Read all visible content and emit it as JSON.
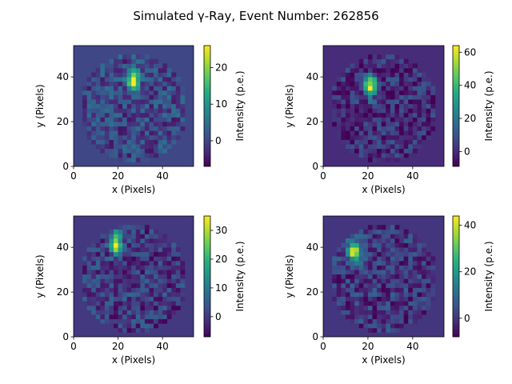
{
  "figure": {
    "suptitle": "Simulated γ-Ray, Event Number: 262856"
  },
  "chart_data": [
    {
      "type": "heatmap",
      "xlabel": "x (Pixels)",
      "ylabel": "y (Pixels)",
      "xlim": [
        0,
        54
      ],
      "ylim": [
        54,
        0
      ],
      "x_ticks": [
        0,
        20,
        40
      ],
      "y_ticks": [
        0,
        20,
        40
      ],
      "colorbar": {
        "label": "Intensity (p.e.)",
        "range": [
          -7,
          26
        ],
        "ticks": [
          0,
          10,
          20
        ],
        "colormap": "viridis"
      },
      "hotspot": {
        "x": 27,
        "y": 39,
        "peak": 26
      }
    },
    {
      "type": "heatmap",
      "xlabel": "x (Pixels)",
      "ylabel": "y (Pixels)",
      "xlim": [
        0,
        54
      ],
      "ylim": [
        54,
        0
      ],
      "x_ticks": [
        0,
        20,
        40
      ],
      "y_ticks": [
        0,
        20,
        40
      ],
      "colorbar": {
        "label": "Intensity (p.e.)",
        "range": [
          -9,
          64
        ],
        "ticks": [
          0,
          20,
          40,
          60
        ],
        "colormap": "viridis"
      },
      "hotspot": {
        "x": 21,
        "y": 36,
        "peak": 64
      }
    },
    {
      "type": "heatmap",
      "xlabel": "x (Pixels)",
      "ylabel": "y (Pixels)",
      "xlim": [
        0,
        54
      ],
      "ylim": [
        54,
        0
      ],
      "x_ticks": [
        0,
        20,
        40
      ],
      "y_ticks": [
        0,
        20,
        40
      ],
      "colorbar": {
        "label": "Intensity (p.e.)",
        "range": [
          -7,
          35
        ],
        "ticks": [
          0,
          10,
          20,
          30
        ],
        "colormap": "viridis"
      },
      "hotspot": {
        "x": 19,
        "y": 42,
        "peak": 35
      }
    },
    {
      "type": "heatmap",
      "xlabel": "x (Pixels)",
      "ylabel": "y (Pixels)",
      "xlim": [
        0,
        54
      ],
      "ylim": [
        54,
        0
      ],
      "x_ticks": [
        0,
        20,
        40
      ],
      "y_ticks": [
        0,
        20,
        40
      ],
      "colorbar": {
        "label": "Intensity (p.e.)",
        "range": [
          -8,
          44
        ],
        "ticks": [
          0,
          20,
          40
        ],
        "colormap": "viridis"
      },
      "hotspot": {
        "x": 14,
        "y": 38,
        "peak": 44
      }
    }
  ]
}
